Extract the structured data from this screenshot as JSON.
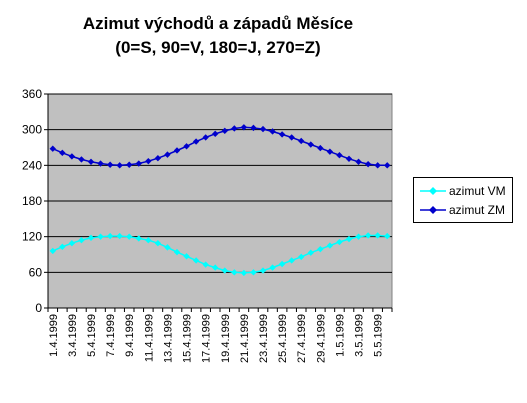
{
  "chart_data": {
    "type": "line",
    "title": "Azimut východů a západů Měsíce",
    "subtitle": "(0=S, 90=V, 180=J, 270=Z)",
    "xlabel": "",
    "ylabel": "",
    "ylim": [
      0,
      360
    ],
    "yticks": [
      0,
      60,
      120,
      180,
      240,
      300,
      360
    ],
    "grid": true,
    "legend": "right",
    "categories": [
      "1.4.1999",
      "2.4.1999",
      "3.4.1999",
      "4.4.1999",
      "5.4.1999",
      "6.4.1999",
      "7.4.1999",
      "8.4.1999",
      "9.4.1999",
      "10.4.1999",
      "11.4.1999",
      "12.4.1999",
      "13.4.1999",
      "14.4.1999",
      "15.4.1999",
      "16.4.1999",
      "17.4.1999",
      "18.4.1999",
      "19.4.1999",
      "20.4.1999",
      "21.4.1999",
      "22.4.1999",
      "23.4.1999",
      "24.4.1999",
      "25.4.1999",
      "26.4.1999",
      "27.4.1999",
      "28.4.1999",
      "29.4.1999",
      "30.4.1999",
      "1.5.1999",
      "2.5.1999",
      "3.5.1999",
      "4.5.1999",
      "5.5.1999",
      "6.5.1999"
    ],
    "tick_labels": [
      "1.4.1999",
      "3.4.1999",
      "5.4.1999",
      "7.4.1999",
      "9.4.1999",
      "11.4.1999",
      "13.4.1999",
      "15.4.1999",
      "17.4.1999",
      "19.4.1999",
      "21.4.1999",
      "23.4.1999",
      "25.4.1999",
      "27.4.1999",
      "29.4.1999",
      "1.5.1999",
      "3.5.1999",
      "5.5.1999"
    ],
    "series": [
      {
        "name": "azimut VM",
        "color": "#00ffff",
        "marker": "diamond",
        "values": [
          96,
          103,
          109,
          114,
          118,
          120,
          121,
          121,
          120,
          117,
          114,
          109,
          102,
          94,
          87,
          80,
          73,
          68,
          63,
          60,
          59,
          60,
          63,
          68,
          74,
          80,
          86,
          93,
          99,
          105,
          111,
          116,
          120,
          122,
          122,
          121
        ]
      },
      {
        "name": "azimut ZM",
        "color": "#0000cc",
        "marker": "diamond",
        "values": [
          268,
          261,
          255,
          250,
          246,
          243,
          241,
          240,
          241,
          243,
          247,
          252,
          258,
          265,
          272,
          280,
          287,
          293,
          298,
          302,
          304,
          303,
          301,
          297,
          292,
          287,
          281,
          275,
          269,
          263,
          257,
          251,
          246,
          242,
          240,
          240
        ]
      }
    ]
  }
}
